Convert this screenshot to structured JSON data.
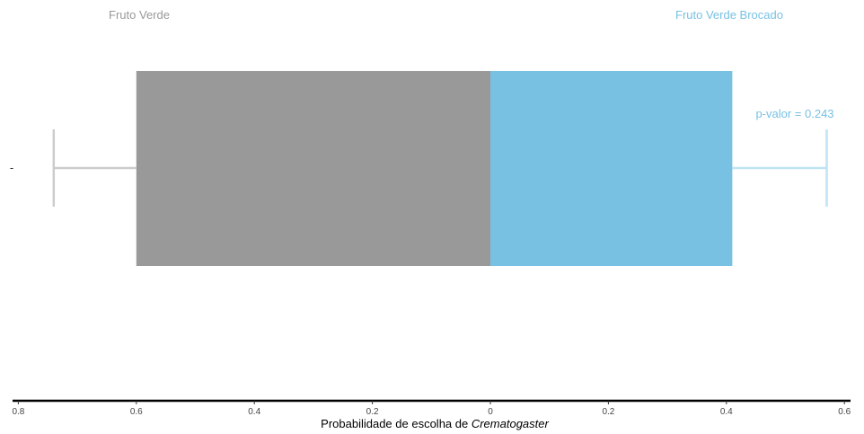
{
  "chart_data": {
    "type": "bar",
    "orientation": "horizontal-diverging",
    "category_label": "-",
    "series": [
      {
        "name": "Fruto Verde",
        "value": 0.6,
        "error_bar": [
          0.6,
          0.74
        ],
        "color": "#999999",
        "error_color": "#cccccc"
      },
      {
        "name": "Fruto Verde Brocado",
        "value": 0.41,
        "error_bar": [
          0.41,
          0.57
        ],
        "color": "#78c1e3",
        "error_color": "#bfe3f3"
      }
    ],
    "annotation": "p-valor = 0.243",
    "xlabel_prefix": "Probabilidade de escolha de ",
    "xlabel_italic": "Crematogaster",
    "xlim": [
      -0.8,
      0.6
    ],
    "x_tick_values": [
      -0.8,
      -0.6,
      -0.4,
      -0.2,
      0,
      0.2,
      0.4,
      0.6
    ],
    "x_tick_labels": [
      "0.8",
      "0.6",
      "0.4",
      "0.2",
      "0",
      "0.2",
      "0.4",
      "0.6"
    ],
    "grid": false,
    "legend": "top"
  }
}
